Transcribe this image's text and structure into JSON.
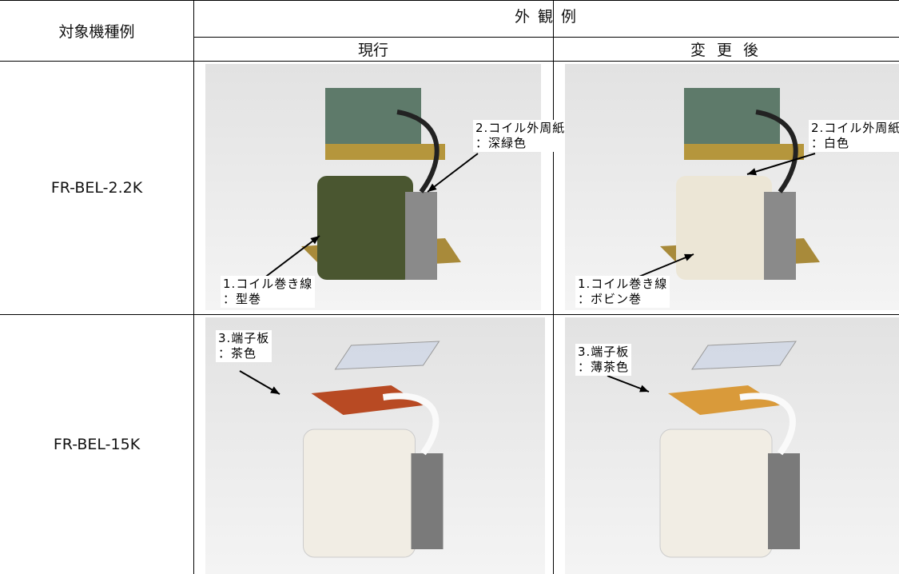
{
  "table": {
    "header": {
      "model_col": "対象機種例",
      "appearance": "外 観 例",
      "current": "現行",
      "changed": "変 更 後"
    },
    "rows": [
      {
        "model": "FR-BEL-2.2K",
        "current": [
          {
            "lines": [
              "2.コイル外周紙",
              "：深緑色"
            ]
          },
          {
            "lines": [
              "1.コイル巻き線",
              "：型巻"
            ]
          }
        ],
        "changed": [
          {
            "lines": [
              "2.コイル外周紙",
              "：白色"
            ]
          },
          {
            "lines": [
              "1.コイル巻き線",
              "：ボビン巻"
            ]
          }
        ]
      },
      {
        "model": "FR-BEL-15K",
        "current": [
          {
            "lines": [
              "3.端子板",
              "：茶色"
            ]
          }
        ],
        "changed": [
          {
            "lines": [
              "3.端子板",
              "：薄茶色"
            ]
          }
        ]
      }
    ]
  }
}
